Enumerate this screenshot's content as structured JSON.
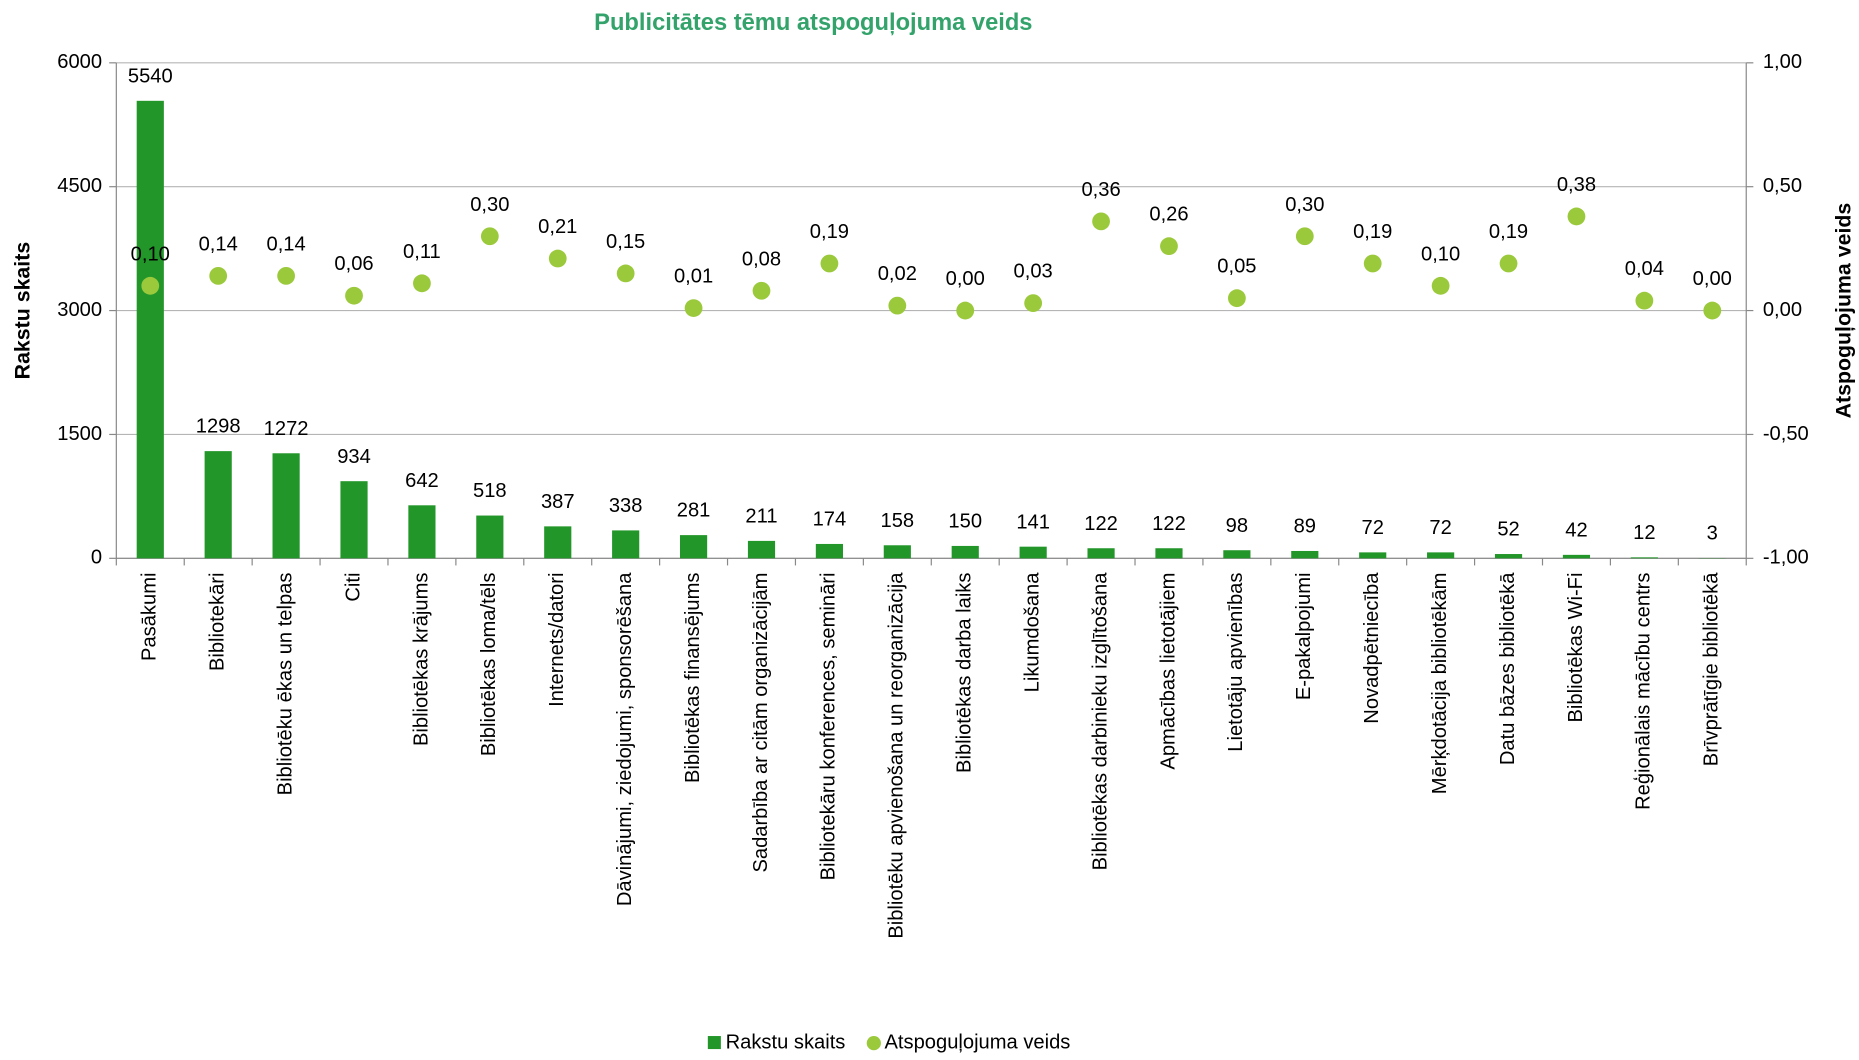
{
  "chart_data": {
    "type": "bar_scatter",
    "title": "Publicitātes tēmu atspoguļojuma veids",
    "y_label": "Rakstu skaits",
    "y2_label": "Atspoguļojuma veids",
    "categories": [
      "Pasākumi",
      "Bibliotekāri",
      "Bibliotēku ēkas un telpas",
      "Citi",
      "Bibliotēkas krājums",
      "Bibliotēkas loma/tēls",
      "Internets/datori",
      "Dāvinājumi, ziedojumi, sponsorēšana",
      "Bibliotēkas finansējums",
      "Sadarbība ar citām organizācijām",
      "Bibliotekāru konferences, semināri",
      "Bibliotēku apvienošana un reorganizācija",
      "Bibliotēkas darba laiks",
      "Likumdošana",
      "Bibliotēkas darbinieku izglītošana",
      "Apmācības lietotājiem",
      "Lietotāju apvienības",
      "E-pakalpojumi",
      "Novadpētniecība",
      "Mērķdotācija bibliotēkām",
      "Datu bāzes bibliotēkā",
      "Bibliotēkas Wi-Fi",
      "Reģionālais mācību centrs",
      "Brīvprātīgie bibliotēkā"
    ],
    "series": [
      {
        "name": "Rakstu skaits",
        "color": "#23962a",
        "type": "bar",
        "values": [
          5540,
          1298,
          1272,
          934,
          642,
          518,
          387,
          338,
          281,
          211,
          174,
          158,
          150,
          141,
          122,
          122,
          98,
          89,
          72,
          72,
          52,
          42,
          12,
          3
        ]
      },
      {
        "name": "Atspoguļojuma veids",
        "color": "#9bc93c",
        "type": "scatter",
        "axis": "y2",
        "values": [
          0.1,
          0.14,
          0.14,
          0.06,
          0.11,
          0.3,
          0.21,
          0.15,
          0.01,
          0.08,
          0.19,
          0.02,
          0.0,
          0.03,
          0.36,
          0.26,
          0.05,
          0.3,
          0.19,
          0.1,
          0.19,
          0.38,
          0.04,
          0.0
        ],
        "value_labels": [
          "0,10",
          "0,14",
          "0,14",
          "0,06",
          "0,11",
          "0,30",
          "0,21",
          "0,15",
          "0,01",
          "0,08",
          "0,19",
          "0,02",
          "0,00",
          "0,03",
          "0,36",
          "0,26",
          "0,05",
          "0,30",
          "0,19",
          "0,10",
          "0,19",
          "0,38",
          "0,04",
          "0,00"
        ]
      }
    ],
    "ylim": [
      0,
      6000
    ],
    "yticks": [
      0,
      1500,
      3000,
      4500,
      6000
    ],
    "y2lim": [
      -1,
      1
    ],
    "y2ticks": [
      {
        "value": -1,
        "label": "-1,00"
      },
      {
        "value": -0.5,
        "label": "-0,50"
      },
      {
        "value": 0,
        "label": "0,00"
      },
      {
        "value": 0.5,
        "label": "0,50"
      },
      {
        "value": 1,
        "label": "1,00"
      }
    ],
    "grid": true,
    "legend": "bottom"
  }
}
